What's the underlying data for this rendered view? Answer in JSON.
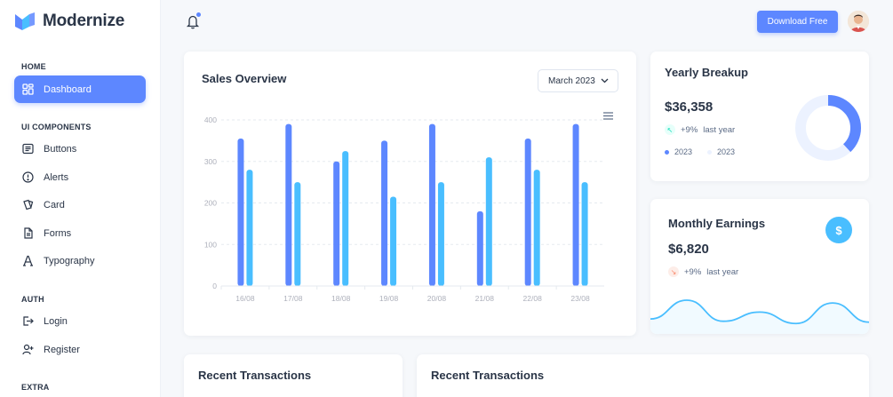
{
  "app": {
    "name": "Modernize"
  },
  "sidebar": {
    "sections": [
      {
        "label": "HOME"
      },
      {
        "label": "UI COMPONENTS"
      },
      {
        "label": "AUTH"
      },
      {
        "label": "EXTRA"
      }
    ],
    "items": [
      {
        "label": "Dashboard",
        "icon": "dashboard-icon",
        "active": true
      },
      {
        "label": "Buttons",
        "icon": "article-icon"
      },
      {
        "label": "Alerts",
        "icon": "alert-circle-icon"
      },
      {
        "label": "Card",
        "icon": "cards-icon"
      },
      {
        "label": "Forms",
        "icon": "file-description-icon"
      },
      {
        "label": "Typography",
        "icon": "typography-icon"
      },
      {
        "label": "Login",
        "icon": "login-icon"
      },
      {
        "label": "Register",
        "icon": "user-plus-icon"
      }
    ]
  },
  "topbar": {
    "download_label": "Download Free",
    "notification_indicator": true
  },
  "sales": {
    "title": "Sales Overview",
    "month": "March 2023"
  },
  "chart_data": {
    "type": "bar",
    "categories": [
      "16/08",
      "17/08",
      "18/08",
      "19/08",
      "20/08",
      "21/08",
      "22/08",
      "23/08"
    ],
    "series": [
      {
        "values": [
          355,
          390,
          300,
          350,
          390,
          180,
          355,
          390
        ],
        "color": "#5d87ff"
      },
      {
        "values": [
          280,
          250,
          325,
          215,
          250,
          310,
          280,
          250
        ],
        "color": "#49beff"
      }
    ],
    "ylim": [
      0,
      400
    ],
    "yticks": [
      0,
      100,
      200,
      300,
      400
    ],
    "grid": true,
    "title": "",
    "xlabel": "",
    "ylabel": ""
  },
  "yearly": {
    "title": "Yearly Breakup",
    "value": "$36,358",
    "change": "+9%",
    "change_text": "last year",
    "legend": [
      {
        "label": "2023",
        "color": "#5d87ff"
      },
      {
        "label": "2023",
        "color": "#ecf2ff"
      }
    ],
    "donut": {
      "primary_fraction": 0.38,
      "primary_color": "#5d87ff",
      "secondary_color": "#ecf2ff"
    }
  },
  "monthly": {
    "title": "Monthly Earnings",
    "value": "$6,820",
    "change": "+9%",
    "change_text": "last year",
    "icon": "currency-dollar-icon",
    "sparkline": [
      25,
      66,
      20,
      40,
      15,
      60,
      18
    ]
  },
  "recent": {
    "title_1": "Recent Transactions",
    "title_2": "Recent Transactions"
  },
  "colors": {
    "primary": "#5d87ff",
    "secondary": "#49beff",
    "success": "#13deb9",
    "danger": "#fa896b"
  }
}
